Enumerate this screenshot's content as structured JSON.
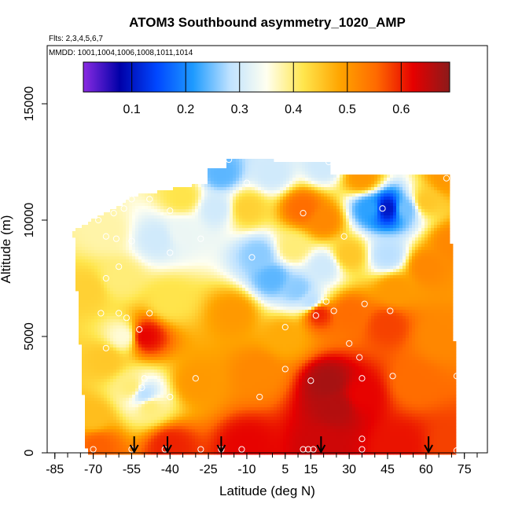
{
  "chart_data": {
    "type": "heatmap",
    "title": "ATOM3 Southbound asymmetry_1020_AMP",
    "subtitle_flights": "Flts: 2,3,4,5,6,7",
    "subtitle_dates": "MMDD: 1001,1004,1006,1008,1011,1014",
    "xlabel": "Latitude (deg N)",
    "ylabel": "Altitude (m)",
    "xlim": [
      -88,
      84
    ],
    "ylim": [
      0,
      17500
    ],
    "x_ticks": [
      -85,
      -70,
      -55,
      -40,
      -25,
      -10,
      5,
      15,
      30,
      45,
      60,
      75
    ],
    "x_tick_labels": [
      "-85",
      "-70",
      "-55",
      "-40",
      "-25",
      "-10",
      "5",
      "15",
      "30",
      "45",
      "60",
      "75"
    ],
    "y_ticks": [
      0,
      5000,
      10000,
      15000
    ],
    "y_tick_labels": [
      "0",
      "5000",
      "10000",
      "15000"
    ],
    "colorbar": {
      "range": [
        0.01,
        0.69
      ],
      "ticks": [
        0.1,
        0.2,
        0.3,
        0.4,
        0.5,
        0.6
      ],
      "tick_labels": [
        "0.1",
        "0.2",
        "0.3",
        "0.4",
        "0.5",
        "0.6"
      ],
      "colors": [
        "#8a2be2",
        "#0000a8",
        "#0047ff",
        "#1e9bff",
        "#bfe2ff",
        "#fffff0",
        "#ffe64d",
        "#ffa500",
        "#ff6a00",
        "#e60000",
        "#8b1a1a"
      ]
    },
    "profile_markers_lat": [
      -54,
      -41,
      -20,
      19,
      61
    ],
    "grid": false,
    "legend": "colorbar-top-inside",
    "field_description": "Interpolated curtain of asymmetry values vs latitude and altitude",
    "anchors": [
      {
        "x": -68,
        "y": 300,
        "v": 0.56
      },
      {
        "x": -40,
        "y": 300,
        "v": 0.6
      },
      {
        "x": -10,
        "y": 300,
        "v": 0.62
      },
      {
        "x": 20,
        "y": 300,
        "v": 0.64
      },
      {
        "x": 50,
        "y": 300,
        "v": 0.61
      },
      {
        "x": 70,
        "y": 300,
        "v": 0.58
      },
      {
        "x": 25,
        "y": 2000,
        "v": 0.66
      },
      {
        "x": 22,
        "y": 3000,
        "v": 0.67
      },
      {
        "x": 35,
        "y": 2500,
        "v": 0.62
      },
      {
        "x": 55,
        "y": 3000,
        "v": 0.55
      },
      {
        "x": 65,
        "y": 5000,
        "v": 0.52
      },
      {
        "x": 45,
        "y": 5500,
        "v": 0.58
      },
      {
        "x": -70,
        "y": 1500,
        "v": 0.46
      },
      {
        "x": -65,
        "y": 4000,
        "v": 0.45
      },
      {
        "x": -58,
        "y": 5000,
        "v": 0.36
      },
      {
        "x": -50,
        "y": 5000,
        "v": 0.62
      },
      {
        "x": -30,
        "y": 3000,
        "v": 0.5
      },
      {
        "x": -5,
        "y": 3500,
        "v": 0.52
      },
      {
        "x": -55,
        "y": 2800,
        "v": 0.4
      },
      {
        "x": -50,
        "y": 2500,
        "v": 0.28
      },
      {
        "x": -48,
        "y": 2000,
        "v": 0.4
      },
      {
        "x": -40,
        "y": 6500,
        "v": 0.42
      },
      {
        "x": -15,
        "y": 6000,
        "v": 0.5
      },
      {
        "x": 5,
        "y": 5000,
        "v": 0.48
      },
      {
        "x": -60,
        "y": 7500,
        "v": 0.4
      },
      {
        "x": -72,
        "y": 7000,
        "v": 0.44
      },
      {
        "x": -65,
        "y": 9500,
        "v": 0.38
      },
      {
        "x": -35,
        "y": 9500,
        "v": 0.33
      },
      {
        "x": -45,
        "y": 9200,
        "v": 0.3
      },
      {
        "x": -22,
        "y": 10500,
        "v": 0.3
      },
      {
        "x": -10,
        "y": 10500,
        "v": 0.44
      },
      {
        "x": -5,
        "y": 8500,
        "v": 0.26
      },
      {
        "x": 0,
        "y": 7500,
        "v": 0.24
      },
      {
        "x": 10,
        "y": 7000,
        "v": 0.26
      },
      {
        "x": 15,
        "y": 6500,
        "v": 0.28
      },
      {
        "x": 8,
        "y": 8800,
        "v": 0.4
      },
      {
        "x": 12,
        "y": 10500,
        "v": 0.55
      },
      {
        "x": 20,
        "y": 10000,
        "v": 0.52
      },
      {
        "x": 20,
        "y": 8000,
        "v": 0.3
      },
      {
        "x": 18,
        "y": 6000,
        "v": 0.6
      },
      {
        "x": 30,
        "y": 8500,
        "v": 0.45
      },
      {
        "x": 38,
        "y": 10500,
        "v": 0.22
      },
      {
        "x": 45,
        "y": 10500,
        "v": 0.1
      },
      {
        "x": 52,
        "y": 10500,
        "v": 0.25
      },
      {
        "x": 60,
        "y": 10800,
        "v": 0.45
      },
      {
        "x": 45,
        "y": 8500,
        "v": 0.28
      },
      {
        "x": 48,
        "y": 7000,
        "v": 0.5
      },
      {
        "x": 35,
        "y": 11800,
        "v": 0.5
      },
      {
        "x": -20,
        "y": 12000,
        "v": 0.24
      },
      {
        "x": 0,
        "y": 12000,
        "v": 0.3
      },
      {
        "x": 20,
        "y": 12300,
        "v": 0.3
      },
      {
        "x": 68,
        "y": 11800,
        "v": 0.5
      },
      {
        "x": 70,
        "y": 9000,
        "v": 0.52
      },
      {
        "x": 60,
        "y": 8000,
        "v": 0.52
      },
      {
        "x": -35,
        "y": 11000,
        "v": 0.42
      },
      {
        "x": 30,
        "y": 6000,
        "v": 0.55
      }
    ],
    "observation_points": [
      {
        "x": -70,
        "y": 150
      },
      {
        "x": -55,
        "y": 150
      },
      {
        "x": -42,
        "y": 150
      },
      {
        "x": -28,
        "y": 150
      },
      {
        "x": -20,
        "y": 150
      },
      {
        "x": -12,
        "y": 150
      },
      {
        "x": 12,
        "y": 150
      },
      {
        "x": 14,
        "y": 150
      },
      {
        "x": 16,
        "y": 150
      },
      {
        "x": 35,
        "y": 150
      },
      {
        "x": 72,
        "y": 100
      },
      {
        "x": 35,
        "y": 600
      },
      {
        "x": -67,
        "y": 6000
      },
      {
        "x": -60,
        "y": 6000
      },
      {
        "x": -57,
        "y": 5800
      },
      {
        "x": -48,
        "y": 6000
      },
      {
        "x": -52,
        "y": 5300
      },
      {
        "x": -65,
        "y": 4500
      },
      {
        "x": -50,
        "y": 3200
      },
      {
        "x": -51,
        "y": 2800
      },
      {
        "x": -40,
        "y": 2400
      },
      {
        "x": -30,
        "y": 3200
      },
      {
        "x": -5,
        "y": 2400
      },
      {
        "x": 5,
        "y": 3600
      },
      {
        "x": 15,
        "y": 3100
      },
      {
        "x": 35,
        "y": 3200
      },
      {
        "x": 47,
        "y": 3300
      },
      {
        "x": 72,
        "y": 3300
      },
      {
        "x": 30,
        "y": 4700
      },
      {
        "x": 34,
        "y": 4100
      },
      {
        "x": 5,
        "y": 5400
      },
      {
        "x": 17,
        "y": 5900
      },
      {
        "x": 24,
        "y": 6100
      },
      {
        "x": 21,
        "y": 6500
      },
      {
        "x": 36,
        "y": 6400
      },
      {
        "x": 46,
        "y": 6100
      },
      {
        "x": -65,
        "y": 7500
      },
      {
        "x": -60,
        "y": 8000
      },
      {
        "x": -8,
        "y": 8400
      },
      {
        "x": -40,
        "y": 8600
      },
      {
        "x": -28,
        "y": 9200
      },
      {
        "x": -55,
        "y": 9100
      },
      {
        "x": -61,
        "y": 9200
      },
      {
        "x": -65,
        "y": 9300
      },
      {
        "x": -68,
        "y": 10000
      },
      {
        "x": -62,
        "y": 10300
      },
      {
        "x": -58,
        "y": 10500
      },
      {
        "x": -55,
        "y": 10900
      },
      {
        "x": -48,
        "y": 10900
      },
      {
        "x": -40,
        "y": 10400
      },
      {
        "x": -10,
        "y": 11600
      },
      {
        "x": -17,
        "y": 12600
      },
      {
        "x": 12,
        "y": 10300
      },
      {
        "x": 28,
        "y": 9300
      },
      {
        "x": 43,
        "y": 10500
      },
      {
        "x": 68,
        "y": 11800
      },
      {
        "x": 22,
        "y": 12500
      }
    ]
  }
}
